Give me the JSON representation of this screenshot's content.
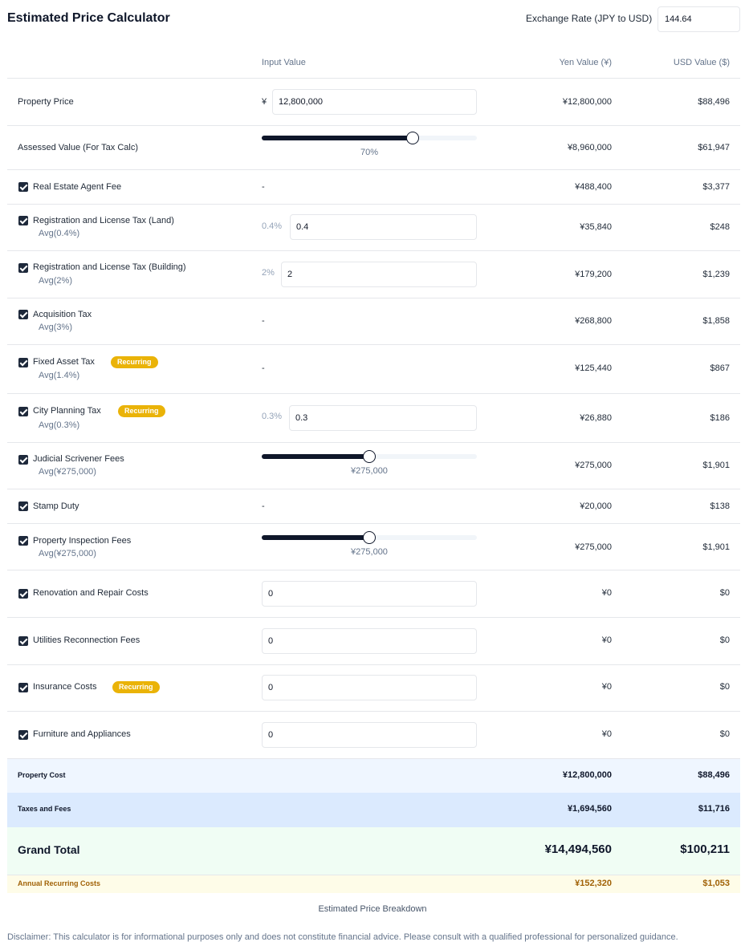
{
  "header": {
    "title": "Estimated Price Calculator",
    "rate_label": "Exchange Rate (JPY to USD)",
    "rate_value": "144.64"
  },
  "columns": {
    "input": "Input Value",
    "yen": "Yen Value (¥)",
    "usd": "USD Value ($)"
  },
  "rows": {
    "property_price": {
      "label": "Property Price",
      "prefix": "¥",
      "input": "12,800,000",
      "yen": "¥12,800,000",
      "usd": "$88,496"
    },
    "assessed": {
      "label": "Assessed Value (For Tax Calc)",
      "slider_fraction": 0.7,
      "slider_label": "70%",
      "yen": "¥8,960,000",
      "usd": "$61,947"
    },
    "agent_fee": {
      "label": "Real Estate Agent Fee",
      "input": "-",
      "yen": "¥488,400",
      "usd": "$3,377"
    },
    "reg_land": {
      "label": "Registration and License Tax (Land)",
      "sub": "Avg(0.4%)",
      "pct": "0.4%",
      "input": "0.4",
      "yen": "¥35,840",
      "usd": "$248"
    },
    "reg_building": {
      "label": "Registration and License Tax (Building)",
      "sub": "Avg(2%)",
      "pct": "2%",
      "input": "2",
      "yen": "¥179,200",
      "usd": "$1,239"
    },
    "acquisition": {
      "label": "Acquisition Tax",
      "sub": "Avg(3%)",
      "input": "-",
      "yen": "¥268,800",
      "usd": "$1,858"
    },
    "fixed_asset": {
      "label": "Fixed Asset Tax",
      "badge": "Recurring",
      "sub": "Avg(1.4%)",
      "input": "-",
      "yen": "¥125,440",
      "usd": "$867"
    },
    "city_planning": {
      "label": "City Planning Tax",
      "badge": "Recurring",
      "sub": "Avg(0.3%)",
      "pct": "0.3%",
      "input": "0.3",
      "yen": "¥26,880",
      "usd": "$186"
    },
    "judicial": {
      "label": "Judicial Scrivener Fees",
      "sub": "Avg(¥275,000)",
      "slider_fraction": 0.5,
      "slider_label": "¥275,000",
      "yen": "¥275,000",
      "usd": "$1,901"
    },
    "stamp": {
      "label": "Stamp Duty",
      "input": "-",
      "yen": "¥20,000",
      "usd": "$138"
    },
    "inspection": {
      "label": "Property Inspection Fees",
      "sub": "Avg(¥275,000)",
      "slider_fraction": 0.5,
      "slider_label": "¥275,000",
      "yen": "¥275,000",
      "usd": "$1,901"
    },
    "renovation": {
      "label": "Renovation and Repair Costs",
      "input": "0",
      "yen": "¥0",
      "usd": "$0"
    },
    "utilities": {
      "label": "Utilities Reconnection Fees",
      "input": "0",
      "yen": "¥0",
      "usd": "$0"
    },
    "insurance": {
      "label": "Insurance Costs",
      "badge": "Recurring",
      "input": "0",
      "yen": "¥0",
      "usd": "$0"
    },
    "furniture": {
      "label": "Furniture and Appliances",
      "input": "0",
      "yen": "¥0",
      "usd": "$0"
    }
  },
  "summary": {
    "property_cost": {
      "label": "Property Cost",
      "yen": "¥12,800,000",
      "usd": "$88,496"
    },
    "taxes": {
      "label": "Taxes and Fees",
      "yen": "¥1,694,560",
      "usd": "$11,716"
    },
    "grand_total": {
      "label": "Grand Total",
      "yen": "¥14,494,560",
      "usd": "$100,211"
    },
    "recurring": {
      "label": "Annual Recurring Costs",
      "yen": "¥152,320",
      "usd": "$1,053"
    }
  },
  "footer": {
    "caption": "Estimated Price Breakdown",
    "disclaimer": "Disclaimer: This calculator is for informational purposes only and does not constitute financial advice. Please consult with a qualified professional for personalized guidance."
  },
  "colors": {
    "accent": "#0f172a",
    "badge": "#eab308",
    "property_bg": "#eff6ff",
    "taxes_bg": "#dbeafe",
    "total_bg": "#f0fdf4",
    "recurring_bg": "#fefce8",
    "recurring_text": "#a16207"
  }
}
